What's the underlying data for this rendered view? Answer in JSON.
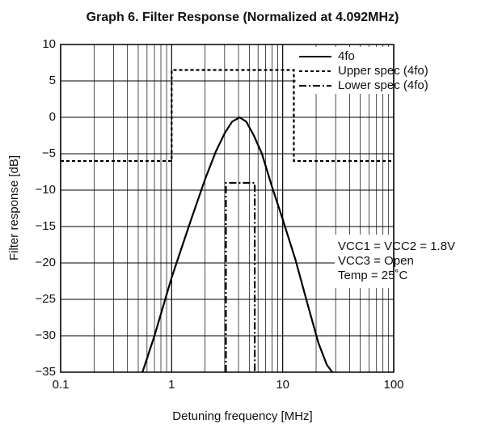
{
  "chart_data": {
    "type": "line",
    "title": "Graph 6. Filter Response (Normalized at 4.092MHz)",
    "xlabel": "Detuning frequency [MHz]",
    "ylabel": "Filter response [dB]",
    "xscale": "log",
    "minor_grid": true,
    "grid": true,
    "legend": "upper right",
    "xlim": [
      0.1,
      100
    ],
    "xticks": [
      0.1,
      1,
      10,
      100
    ],
    "ylim": [
      -35,
      10
    ],
    "yticks": [
      {
        "value": -35,
        "label": "−35"
      },
      {
        "value": -30,
        "label": "−30"
      },
      {
        "value": -25,
        "label": "−25"
      },
      {
        "value": -20,
        "label": "−20"
      },
      {
        "value": -15,
        "label": "−15"
      },
      {
        "value": -10,
        "label": "−10"
      },
      {
        "value": -5,
        "label": "−5"
      },
      0,
      5,
      10
    ],
    "series": [
      {
        "name": "4fo",
        "color": "#000000",
        "style": "solid",
        "x": [
          0.546,
          0.7,
          1,
          1.5,
          2,
          2.5,
          3,
          3.5,
          4.092,
          4.7,
          5.5,
          6.5,
          8,
          10,
          13,
          17,
          21,
          25,
          28
        ],
        "values": [
          -35,
          -30,
          -22,
          -14,
          -8.5,
          -4.7,
          -2.2,
          -0.6,
          0,
          -0.6,
          -2.5,
          -5,
          -9.5,
          -14,
          -19.5,
          -26,
          -31,
          -34,
          -35
        ]
      },
      {
        "name": "Upper spec (4fo)",
        "color": "#000000",
        "style": "dashed",
        "x": [
          0.1,
          1,
          1,
          12.6,
          12.6,
          100
        ],
        "values": [
          -6,
          -6,
          6.5,
          6.5,
          -6,
          -6
        ]
      },
      {
        "name": "Lower spec (4fo)",
        "color": "#000000",
        "style": "dashdot",
        "x": [
          3.08,
          3.08,
          5.6,
          5.6
        ],
        "values": [
          -35,
          -9,
          -9,
          -35
        ]
      }
    ],
    "annotations": [
      "VCC1 = VCC2 = 1.8V",
      "VCC3 = Open",
      "Temp = 25˚C"
    ]
  }
}
